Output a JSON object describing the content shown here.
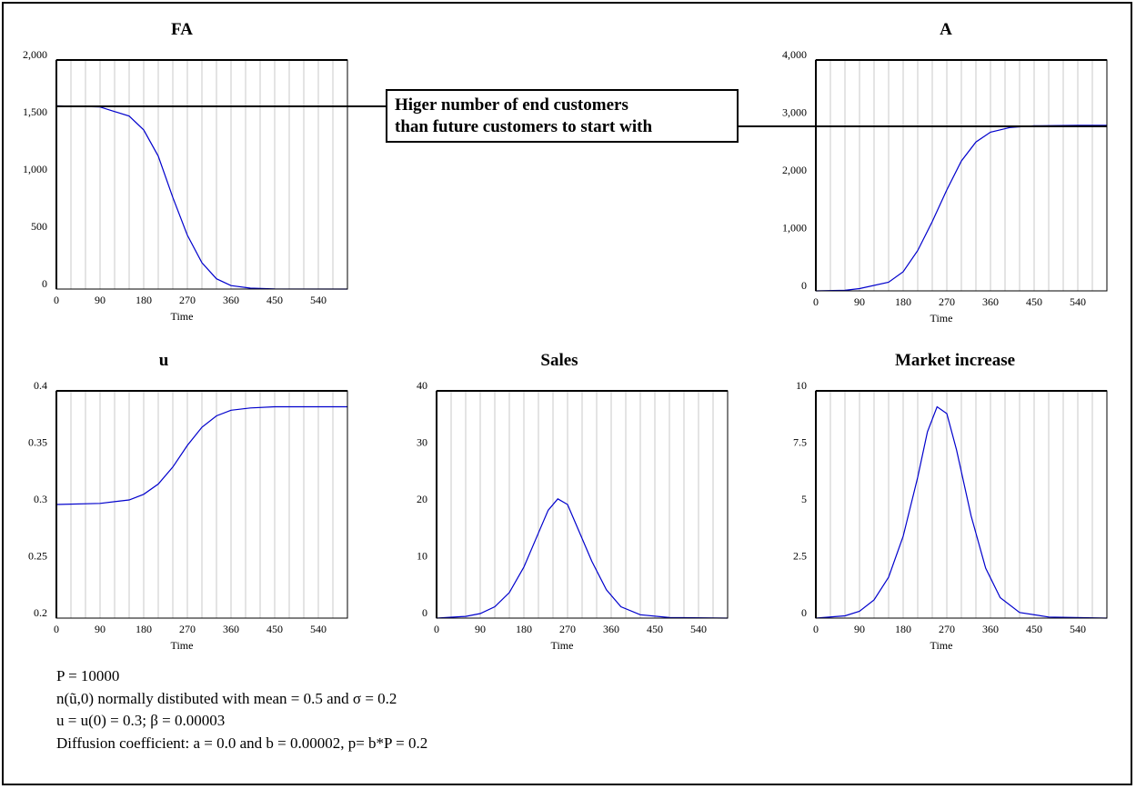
{
  "chart_data": [
    {
      "type": "line",
      "title": "FA",
      "xlabel": "Time",
      "ylabel": "",
      "xlim": [
        0,
        600
      ],
      "ylim": [
        0,
        2000
      ],
      "x_ticks": [
        "0",
        "90",
        "180",
        "270",
        "360",
        "450",
        "540"
      ],
      "y_ticks": [
        "2,000",
        "1,500",
        "1,000",
        "500",
        "0"
      ],
      "series": [
        {
          "x": [
            0,
            90,
            150,
            180,
            210,
            240,
            270,
            300,
            330,
            360,
            400,
            450,
            600
          ],
          "values": [
            1600,
            1590,
            1510,
            1390,
            1160,
            800,
            470,
            230,
            90,
            30,
            8,
            1,
            0
          ]
        }
      ],
      "line_color": "#0000cc",
      "grid": "vertical"
    },
    {
      "type": "line",
      "title": "A",
      "xlabel": "Time",
      "ylabel": "",
      "xlim": [
        0,
        600
      ],
      "ylim": [
        0,
        4000
      ],
      "x_ticks": [
        "0",
        "90",
        "180",
        "270",
        "360",
        "450",
        "540"
      ],
      "y_ticks": [
        "4,000",
        "3,000",
        "2,000",
        "1,000",
        "0"
      ],
      "series": [
        {
          "x": [
            0,
            60,
            90,
            150,
            180,
            210,
            240,
            270,
            300,
            330,
            360,
            400,
            450,
            540,
            600
          ],
          "values": [
            0,
            10,
            40,
            150,
            330,
            700,
            1200,
            1750,
            2250,
            2580,
            2750,
            2830,
            2860,
            2870,
            2870
          ]
        }
      ],
      "line_color": "#0000cc",
      "grid": "vertical"
    },
    {
      "type": "line",
      "title": "u",
      "xlabel": "Time",
      "ylabel": "",
      "xlim": [
        0,
        600
      ],
      "ylim": [
        0.2,
        0.4
      ],
      "x_ticks": [
        "0",
        "90",
        "180",
        "270",
        "360",
        "450",
        "540"
      ],
      "y_ticks": [
        "0.4",
        "0.35",
        "0.3",
        "0.25",
        "0.2"
      ],
      "series": [
        {
          "x": [
            0,
            90,
            150,
            180,
            210,
            240,
            270,
            300,
            330,
            360,
            400,
            450,
            600
          ],
          "values": [
            0.3,
            0.301,
            0.304,
            0.309,
            0.318,
            0.333,
            0.352,
            0.368,
            0.378,
            0.383,
            0.385,
            0.386,
            0.386
          ]
        }
      ],
      "line_color": "#0000cc",
      "grid": "vertical"
    },
    {
      "type": "line",
      "title": "Sales",
      "xlabel": "Time",
      "ylabel": "",
      "xlim": [
        0,
        600
      ],
      "ylim": [
        0,
        40
      ],
      "x_ticks": [
        "0",
        "90",
        "180",
        "270",
        "360",
        "450",
        "540"
      ],
      "y_ticks": [
        "40",
        "30",
        "20",
        "10",
        "0"
      ],
      "series": [
        {
          "x": [
            0,
            60,
            90,
            120,
            150,
            180,
            210,
            230,
            250,
            270,
            290,
            320,
            350,
            380,
            420,
            480,
            600
          ],
          "values": [
            0,
            0.3,
            0.8,
            2,
            4.5,
            9,
            15,
            19,
            21,
            20,
            16,
            10,
            5,
            2,
            0.6,
            0.1,
            0
          ]
        }
      ],
      "line_color": "#0000cc",
      "grid": "vertical"
    },
    {
      "type": "line",
      "title": "Market increase",
      "xlabel": "Time",
      "ylabel": "",
      "xlim": [
        0,
        600
      ],
      "ylim": [
        0,
        10
      ],
      "x_ticks": [
        "0",
        "90",
        "180",
        "270",
        "360",
        "450",
        "540"
      ],
      "y_ticks": [
        "10",
        "7.5",
        "5",
        "2.5",
        "0"
      ],
      "series": [
        {
          "x": [
            0,
            60,
            90,
            120,
            150,
            180,
            210,
            230,
            250,
            270,
            290,
            320,
            350,
            380,
            420,
            480,
            600
          ],
          "values": [
            0,
            0.1,
            0.3,
            0.8,
            1.8,
            3.6,
            6.2,
            8.2,
            9.3,
            9,
            7.4,
            4.5,
            2.2,
            0.9,
            0.25,
            0.05,
            0
          ]
        }
      ],
      "line_color": "#0000cc",
      "grid": "vertical"
    }
  ],
  "annotation": {
    "line1": "Higer number of end customers",
    "line2": "than future customers to start with"
  },
  "notes": [
    "P = 10000",
    "n(ũ,0) normally distibuted with mean = 0.5 and σ = 0.2",
    "u = u(0) = 0.3;  β = 0.00003",
    "Diffusion coefficient: a = 0.0 and b = 0.00002, p= b*P = 0.2"
  ]
}
